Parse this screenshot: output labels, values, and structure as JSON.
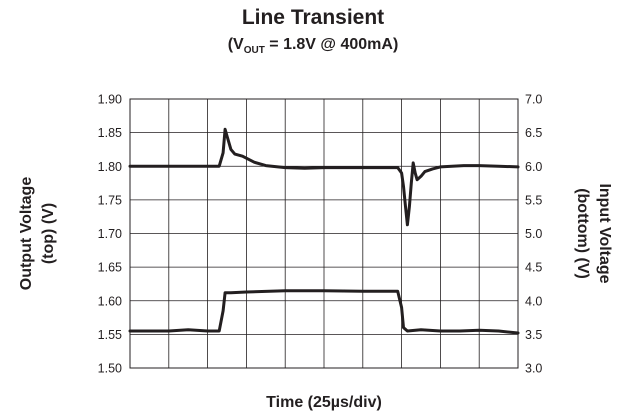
{
  "title": "Line Transient",
  "subtitle": {
    "prefix": "(V",
    "subscript": "OUT",
    "suffix": " = 1.8V @ 400mA)"
  },
  "chart_data": {
    "type": "line",
    "title": "Line Transient",
    "subtitle": "(VOUT = 1.8V @ 400mA)",
    "xlabel": "Time (25µs/div)",
    "x_divisions": 10,
    "x_unit": "div",
    "xlim": [
      0,
      10
    ],
    "ylabel_left": [
      "Output Voltage",
      "(top) (V)"
    ],
    "ylabel_right": [
      "Input Voltage",
      "(bottom) (V)"
    ],
    "ylim_left": [
      1.5,
      1.9
    ],
    "ylim_right": [
      3.0,
      7.0
    ],
    "yticks_left": [
      "1.50",
      "1.55",
      "1.60",
      "1.65",
      "1.70",
      "1.75",
      "1.80",
      "1.85",
      "1.90"
    ],
    "yticks_right": [
      "3.0",
      "3.5",
      "4.0",
      "4.5",
      "5.0",
      "5.5",
      "6.0",
      "6.5",
      "7.0"
    ],
    "grid": true,
    "series": [
      {
        "axis": "left",
        "color": "#231f20",
        "x": [
          0,
          0.5,
          1.0,
          1.5,
          2.0,
          2.3,
          2.4,
          2.45,
          2.5,
          2.6,
          2.7,
          2.9,
          3.2,
          3.5,
          4.0,
          4.5,
          5.0,
          5.5,
          6.0,
          6.5,
          6.9,
          7.0,
          7.05,
          7.1,
          7.15,
          7.2,
          7.25,
          7.3,
          7.35,
          7.4,
          7.5,
          7.6,
          7.8,
          8.0,
          8.3,
          8.6,
          9.0,
          9.5,
          10.0
        ],
        "y": [
          1.8,
          1.8,
          1.8,
          1.8,
          1.8,
          1.8,
          1.82,
          1.855,
          1.845,
          1.825,
          1.818,
          1.815,
          1.806,
          1.801,
          1.798,
          1.797,
          1.798,
          1.798,
          1.798,
          1.798,
          1.798,
          1.79,
          1.77,
          1.74,
          1.713,
          1.74,
          1.775,
          1.805,
          1.79,
          1.78,
          1.785,
          1.792,
          1.796,
          1.799,
          1.8,
          1.801,
          1.801,
          1.8,
          1.799
        ]
      },
      {
        "axis": "right",
        "color": "#231f20",
        "x": [
          0,
          0.5,
          1.0,
          1.5,
          2.0,
          2.3,
          2.4,
          2.45,
          2.6,
          3.0,
          4.0,
          5.0,
          6.0,
          6.9,
          7.0,
          7.05,
          7.15,
          7.5,
          8.0,
          8.5,
          9.0,
          9.5,
          10.0
        ],
        "y": [
          3.55,
          3.55,
          3.55,
          3.57,
          3.55,
          3.55,
          3.85,
          4.12,
          4.12,
          4.13,
          4.15,
          4.15,
          4.14,
          4.14,
          3.9,
          3.6,
          3.55,
          3.57,
          3.55,
          3.55,
          3.56,
          3.55,
          3.52
        ]
      }
    ]
  }
}
